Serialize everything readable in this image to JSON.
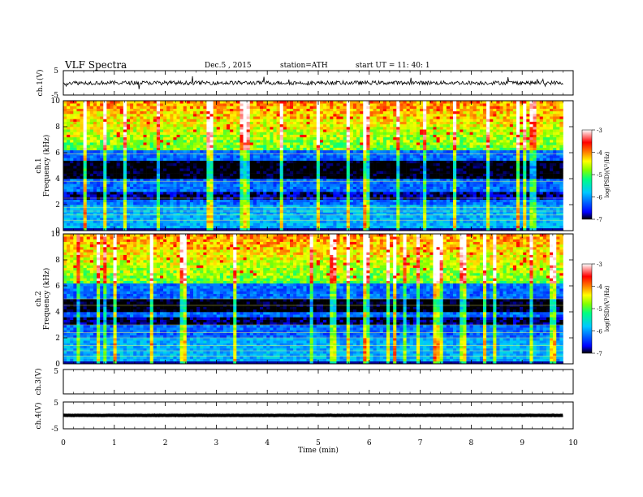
{
  "header": {
    "title": "VLF  Spectra",
    "date": "Dec.5  , 2015",
    "station": "station=ATH",
    "start": "start  UT  =    11: 40: 1"
  },
  "colors": {
    "background": "#ffffff",
    "axis": "#000000",
    "trace": "#000000",
    "colormap": [
      "#000000",
      "#0000ff",
      "#00c8ff",
      "#00ff80",
      "#80ff00",
      "#ffff00",
      "#ff8000",
      "#ff0000",
      "#ffffff"
    ]
  },
  "chart_data": [
    {
      "type": "line",
      "id": "ch1",
      "ylabel": "ch.1(V)",
      "ylim": [
        -5,
        5
      ],
      "yticks": [
        5,
        -5
      ],
      "xlim": [
        0,
        10
      ],
      "series": [
        {
          "x_range": [
            0,
            9.8
          ],
          "mean": 0,
          "amplitude": 0.8
        }
      ]
    },
    {
      "type": "heatmap",
      "id": "ch1-spec",
      "ylabel": "Frequency (kHz)",
      "channel_label": "ch.1",
      "ylim": [
        0,
        10
      ],
      "yticks": [
        0,
        2,
        4,
        6,
        8,
        10
      ],
      "xlim": [
        0,
        10
      ],
      "x_extent": [
        0,
        9.8
      ],
      "colorbar": {
        "label": "log(PSD)(V²/Hz)",
        "range": [
          -7,
          -3
        ],
        "ticks": [
          "-3",
          "-4",
          "-5",
          "-6",
          "-7"
        ]
      }
    },
    {
      "type": "heatmap",
      "id": "ch2-spec",
      "ylabel": "Frequency (kHz)",
      "channel_label": "ch.2",
      "ylim": [
        0,
        10
      ],
      "yticks": [
        0,
        2,
        4,
        6,
        8,
        10
      ],
      "xlim": [
        0,
        10
      ],
      "x_extent": [
        0,
        9.8
      ],
      "colorbar": {
        "label": "log(PSD)(V²/Hz)",
        "range": [
          -7,
          -3
        ],
        "ticks": [
          "-3",
          "-4",
          "-5",
          "-6",
          "-7"
        ]
      }
    },
    {
      "type": "line",
      "id": "ch3",
      "ylabel": "ch.3(V)",
      "ylim": [
        -5,
        5
      ],
      "yticks": [
        5
      ],
      "xlim": [
        0,
        10
      ],
      "series": []
    },
    {
      "type": "line",
      "id": "ch4",
      "ylabel": "ch.4(V)",
      "ylim": [
        -5,
        5
      ],
      "yticks": [
        5,
        -5
      ],
      "xlim": [
        0,
        10
      ],
      "series": [
        {
          "x_range": [
            0,
            9.8
          ],
          "mean": 0,
          "amplitude": 0.05
        }
      ]
    }
  ],
  "xaxis": {
    "label": "Time  (min)",
    "ticks": [
      "0",
      "1",
      "2",
      "3",
      "4",
      "5",
      "6",
      "7",
      "8",
      "9",
      "10"
    ]
  }
}
